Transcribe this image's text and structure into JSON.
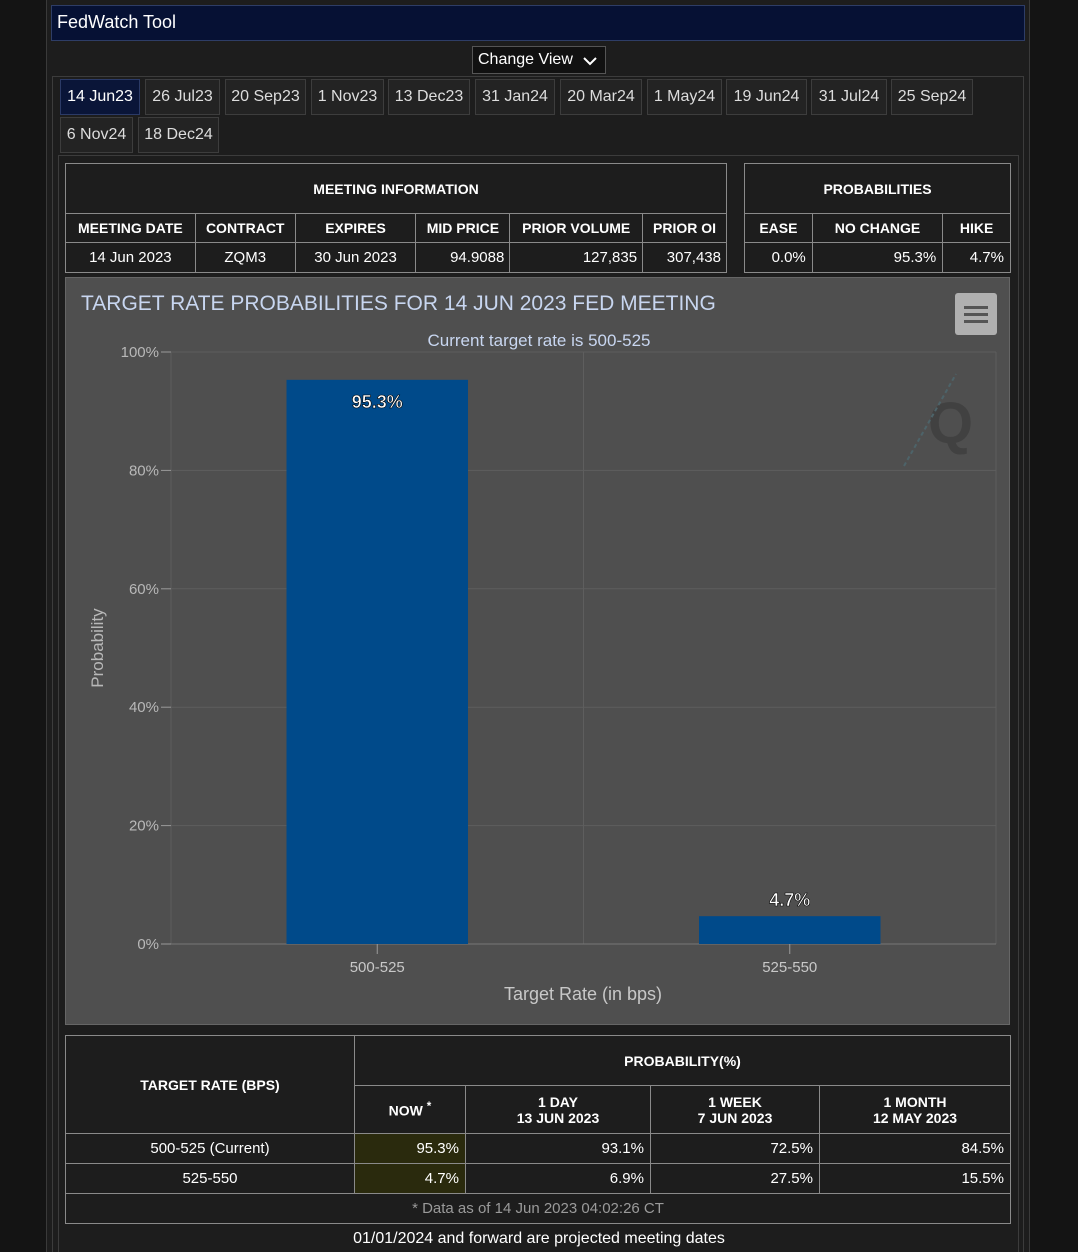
{
  "app": {
    "title": "FedWatch Tool",
    "change_view_label": "Change View"
  },
  "tabs": [
    {
      "label": "14 Jun23",
      "active": true
    },
    {
      "label": "26 Jul23"
    },
    {
      "label": "20 Sep23"
    },
    {
      "label": "1 Nov23"
    },
    {
      "label": "13 Dec23"
    },
    {
      "label": "31 Jan24"
    },
    {
      "label": "20 Mar24"
    },
    {
      "label": "1 May24"
    },
    {
      "label": "19 Jun24"
    },
    {
      "label": "31 Jul24"
    },
    {
      "label": "25 Sep24"
    },
    {
      "label": "6 Nov24"
    },
    {
      "label": "18 Dec24"
    }
  ],
  "meeting_info": {
    "header": "MEETING INFORMATION",
    "columns": [
      "MEETING DATE",
      "CONTRACT",
      "EXPIRES",
      "MID PRICE",
      "PRIOR VOLUME",
      "PRIOR OI"
    ],
    "values": [
      "14 Jun 2023",
      "ZQM3",
      "30 Jun 2023",
      "94.9088",
      "127,835",
      "307,438"
    ]
  },
  "probabilities": {
    "header": "PROBABILITIES",
    "columns": [
      "EASE",
      "NO CHANGE",
      "HIKE"
    ],
    "values": [
      "0.0%",
      "95.3%",
      "4.7%"
    ]
  },
  "chart_data": {
    "type": "bar",
    "title": "TARGET RATE PROBABILITIES FOR 14 JUN 2023 FED MEETING",
    "subtitle": "Current target rate is 500-525",
    "categories": [
      "500-525",
      "525-550"
    ],
    "values": [
      95.3,
      4.7
    ],
    "data_labels": [
      "95.3%",
      "4.7%"
    ],
    "xlabel": "Target Rate (in bps)",
    "ylabel": "Probability",
    "ylim": [
      0,
      100
    ],
    "yticks": [
      "0%",
      "20%",
      "40%",
      "60%",
      "80%",
      "100%"
    ],
    "grid": true,
    "bar_color": "#004a8a"
  },
  "bottom_table": {
    "target_header": "TARGET RATE (BPS)",
    "prob_header": "PROBABILITY(%)",
    "now_label": "NOW",
    "now_marker": "*",
    "periods": [
      {
        "label": "1 DAY",
        "date": "13 JUN 2023"
      },
      {
        "label": "1 WEEK",
        "date": "7 JUN 2023"
      },
      {
        "label": "1 MONTH",
        "date": "12 MAY 2023"
      }
    ],
    "rows": [
      {
        "rate": "500-525 (Current)",
        "now": "95.3%",
        "day": "93.1%",
        "week": "72.5%",
        "month": "84.5%"
      },
      {
        "rate": "525-550",
        "now": "4.7%",
        "day": "6.9%",
        "week": "27.5%",
        "month": "15.5%"
      }
    ],
    "data_note": "* Data as of 14 Jun 2023 04:02:26 CT"
  },
  "footnote": "01/01/2024 and forward are projected meeting dates"
}
